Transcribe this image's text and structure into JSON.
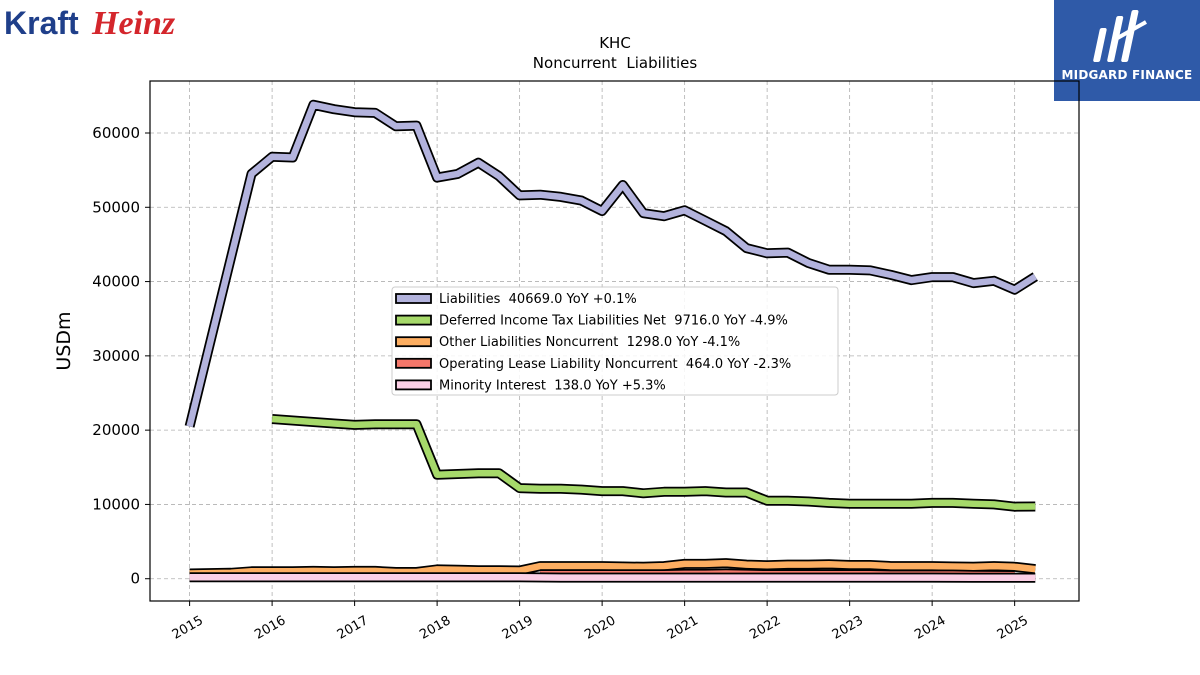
{
  "brand": {
    "left_logo_part1": "Kraft",
    "left_logo_part2": "Heinz",
    "right_logo_text": "MIDGARD FINANCE"
  },
  "colors": {
    "liabilities": "#b3b3dd",
    "deferred_tax": "#a6d96a",
    "other_liabilities": "#fdae61",
    "operating_lease": "#f4776a",
    "minority_interest": "#fcd0e6",
    "kraft_blue": "#1f3f8a",
    "heinz_red": "#d4262c",
    "midgard_blue": "#2f5aa8"
  },
  "chart_data": {
    "type": "line",
    "title": "KHC",
    "subtitle": "Noncurrent  Liabilities",
    "xlabel": "",
    "ylabel": "USDm",
    "xlim": [
      2014.52,
      2025.78
    ],
    "ylim": [
      -3000,
      67000
    ],
    "x_ticks": [
      2015,
      2016,
      2017,
      2018,
      2019,
      2020,
      2021,
      2022,
      2023,
      2024,
      2025
    ],
    "x_tick_labels": [
      "2015",
      "2016",
      "2017",
      "2018",
      "2019",
      "2020",
      "2021",
      "2022",
      "2023",
      "2024",
      "2025"
    ],
    "y_ticks": [
      0,
      10000,
      20000,
      30000,
      40000,
      50000,
      60000
    ],
    "y_tick_labels": [
      "0",
      "10000",
      "20000",
      "30000",
      "40000",
      "50000",
      "60000"
    ],
    "grid": true,
    "legend_position": "center",
    "series": [
      {
        "name": "Liabilities",
        "legend_label": "Liabilities  40669.0 YoY +0.1%",
        "color_key": "liabilities",
        "x": [
          2015.0,
          2015.75,
          2016.0,
          2016.25,
          2016.5,
          2016.75,
          2017.0,
          2017.25,
          2017.5,
          2017.75,
          2018.0,
          2018.25,
          2018.5,
          2018.75,
          2019.0,
          2019.25,
          2019.5,
          2019.75,
          2020.0,
          2020.25,
          2020.5,
          2020.75,
          2021.0,
          2021.25,
          2021.5,
          2021.75,
          2022.0,
          2022.25,
          2022.5,
          2022.75,
          2023.0,
          2023.25,
          2023.5,
          2023.75,
          2024.0,
          2024.25,
          2024.5,
          2024.75,
          2025.0,
          2025.25
        ],
        "y": [
          20500,
          54500,
          56800,
          56700,
          63800,
          63200,
          62800,
          62700,
          60900,
          61000,
          54000,
          54500,
          56000,
          54200,
          51600,
          51700,
          51400,
          50900,
          49500,
          53000,
          49200,
          48800,
          49600,
          48200,
          46800,
          44500,
          43800,
          43900,
          42500,
          41600,
          41600,
          41500,
          40900,
          40200,
          40600,
          40600,
          39800,
          40100,
          38900,
          40669
        ]
      },
      {
        "name": "Deferred Income Tax Liabilities Net",
        "legend_label": "Deferred Income Tax Liabilities Net  9716.0 YoY -4.9%",
        "color_key": "deferred_tax",
        "x": [
          2016.0,
          2016.25,
          2016.5,
          2016.75,
          2017.0,
          2017.25,
          2017.5,
          2017.75,
          2018.0,
          2018.25,
          2018.5,
          2018.75,
          2019.0,
          2019.25,
          2019.5,
          2019.75,
          2020.0,
          2020.25,
          2020.5,
          2020.75,
          2021.0,
          2021.25,
          2021.5,
          2021.75,
          2022.0,
          2022.25,
          2022.5,
          2022.75,
          2023.0,
          2023.25,
          2023.5,
          2023.75,
          2024.0,
          2024.25,
          2024.5,
          2024.75,
          2025.0,
          2025.25
        ],
        "y": [
          21500,
          21300,
          21100,
          20900,
          20700,
          20800,
          20800,
          20800,
          14000,
          14100,
          14200,
          14200,
          12200,
          12100,
          12100,
          12000,
          11800,
          11800,
          11500,
          11700,
          11700,
          11800,
          11600,
          11600,
          10500,
          10500,
          10400,
          10200,
          10100,
          10100,
          10100,
          10100,
          10200,
          10200,
          10100,
          10000,
          9700,
          9716
        ]
      },
      {
        "name": "Other Liabilities Noncurrent",
        "legend_label": "Other Liabilities Noncurrent  1298.0 YoY -4.1%",
        "color_key": "other_liabilities",
        "x": [
          2015.0,
          2015.5,
          2015.75,
          2016.0,
          2016.25,
          2016.5,
          2016.75,
          2017.0,
          2017.25,
          2017.5,
          2017.75,
          2018.0,
          2018.25,
          2018.5,
          2018.75,
          2019.0,
          2019.25,
          2019.5,
          2019.75,
          2020.0,
          2020.25,
          2020.5,
          2020.75,
          2021.0,
          2021.25,
          2021.5,
          2021.75,
          2022.0,
          2022.25,
          2022.5,
          2022.75,
          2023.0,
          2023.25,
          2023.5,
          2023.75,
          2024.0,
          2024.25,
          2024.5,
          2024.75,
          2025.0,
          2025.25
        ],
        "y": [
          700,
          800,
          1000,
          1000,
          1000,
          1050,
          1000,
          1050,
          1050,
          900,
          900,
          1250,
          1200,
          1150,
          1150,
          1100,
          1700,
          1700,
          1700,
          1700,
          1650,
          1600,
          1700,
          2000,
          2000,
          2100,
          1900,
          1800,
          1900,
          1900,
          1950,
          1850,
          1850,
          1700,
          1700,
          1700,
          1650,
          1600,
          1700,
          1600,
          1298
        ]
      },
      {
        "name": "Operating Lease Liability Noncurrent",
        "legend_label": "Operating Lease Liability Noncurrent  464.0 YoY -2.3%",
        "color_key": "operating_lease",
        "x": [
          2019.25,
          2019.5,
          2019.75,
          2020.0,
          2020.25,
          2020.5,
          2020.75,
          2021.0,
          2021.25,
          2021.5,
          2021.75,
          2022.0,
          2022.25,
          2022.5,
          2022.75,
          2023.0,
          2023.25,
          2023.5,
          2023.75,
          2024.0,
          2024.25,
          2024.5,
          2024.75,
          2025.0
        ],
        "y": [
          600,
          600,
          600,
          600,
          600,
          600,
          600,
          650,
          650,
          700,
          650,
          600,
          600,
          600,
          600,
          600,
          600,
          550,
          550,
          550,
          550,
          500,
          480,
          464
        ]
      },
      {
        "name": "Minority Interest",
        "legend_label": "Minority Interest  138.0 YoY +5.3%",
        "color_key": "minority_interest",
        "x": [
          2015.0,
          2015.5,
          2016.0,
          2016.5,
          2017.0,
          2017.5,
          2018.0,
          2018.5,
          2019.0,
          2019.5,
          2020.0,
          2020.5,
          2021.0,
          2021.5,
          2022.0,
          2022.5,
          2023.0,
          2023.5,
          2024.0,
          2024.5,
          2025.0,
          2025.25
        ],
        "y": [
          200,
          200,
          200,
          200,
          200,
          200,
          200,
          200,
          200,
          150,
          150,
          150,
          150,
          150,
          150,
          150,
          150,
          150,
          150,
          140,
          138,
          138
        ]
      }
    ]
  }
}
